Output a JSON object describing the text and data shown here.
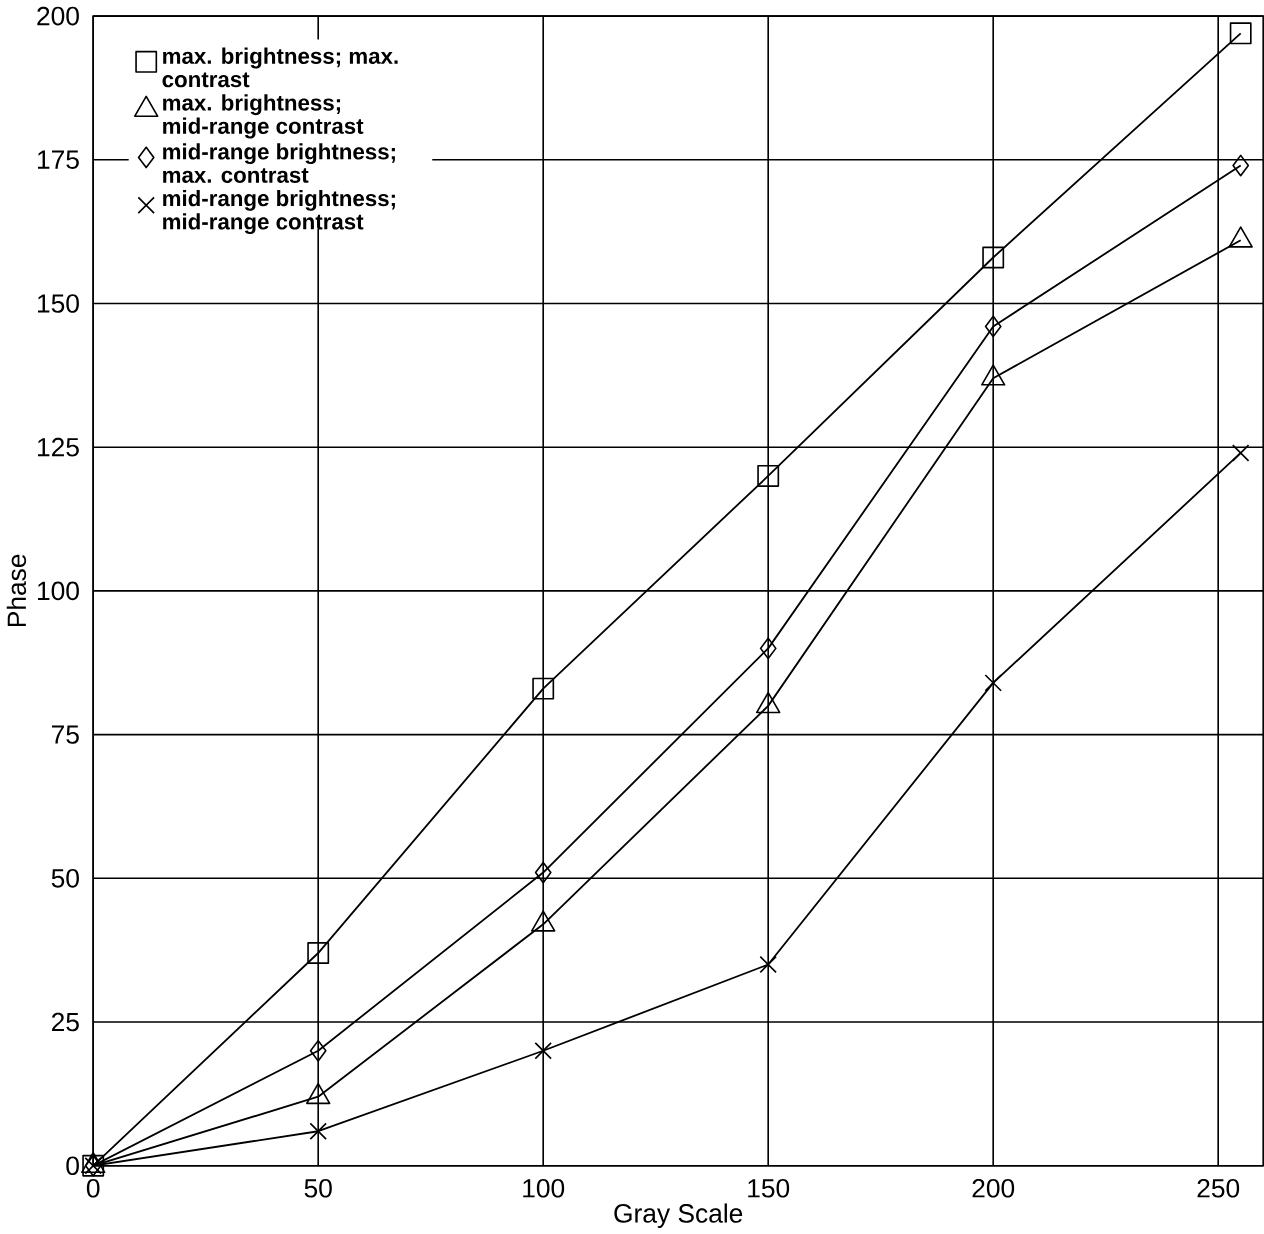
{
  "chart_data": {
    "type": "line",
    "xlabel": "Gray Scale",
    "ylabel": "Phase",
    "xlim": [
      0,
      260
    ],
    "ylim": [
      0,
      200
    ],
    "xticks": [
      0,
      50,
      100,
      150,
      200,
      250
    ],
    "yticks": [
      0,
      25,
      50,
      75,
      100,
      125,
      150,
      175,
      200
    ],
    "grid": true,
    "legend": "top left",
    "x": [
      0,
      50,
      100,
      150,
      200,
      255
    ],
    "series": [
      {
        "name": "max. brightness; max. contrast",
        "color": "#000000",
        "marker": "square",
        "values": [
          0,
          37,
          83,
          120,
          158,
          197
        ]
      },
      {
        "name": "max. brightness; mid-range contrast",
        "color": "#000000",
        "marker": "triangle",
        "values": [
          0,
          12,
          42,
          80,
          137,
          161
        ]
      },
      {
        "name": "mid-range brightness; max. contrast",
        "color": "#000000",
        "marker": "diamond",
        "values": [
          0,
          20,
          51,
          90,
          146,
          174
        ]
      },
      {
        "name": "mid-range brightness; mid-range contrast",
        "color": "#000000",
        "marker": "cross",
        "values": [
          0,
          6,
          20,
          35,
          84,
          124
        ]
      }
    ]
  }
}
